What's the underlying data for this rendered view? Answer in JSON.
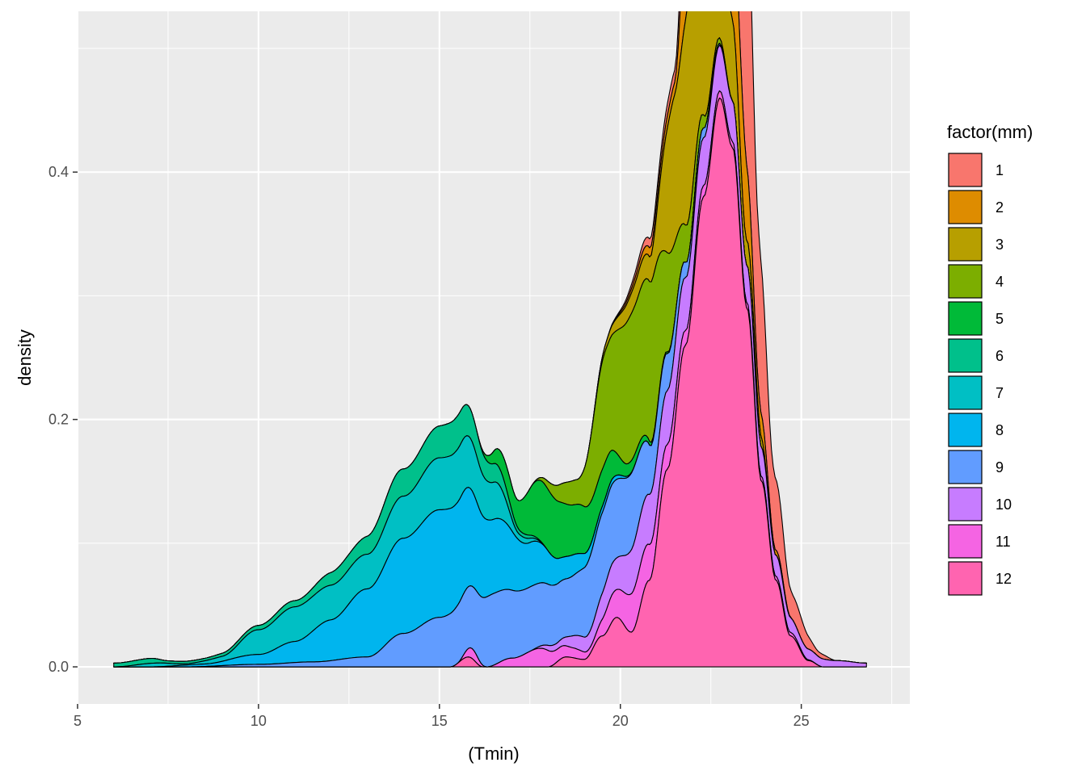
{
  "chart_data": {
    "type": "area",
    "subtype": "stacked-density",
    "xlabel": "(Tmin)",
    "ylabel": "density",
    "xlim": [
      5,
      28
    ],
    "ylim": [
      -0.03,
      0.53
    ],
    "x_ticks": [
      5,
      10,
      15,
      20,
      25
    ],
    "x_tick_labels": [
      "5",
      "10",
      "15",
      "20",
      "25"
    ],
    "y_ticks": [
      0.0,
      0.2,
      0.4
    ],
    "y_tick_labels": [
      "0.0",
      "0.2",
      "0.4"
    ],
    "grid": true,
    "legend": {
      "title": "factor(mm)",
      "position": "right"
    },
    "series": [
      {
        "name": "1",
        "color": "#F8766D",
        "points": [
          [
            19.5,
            0
          ],
          [
            21.5,
            0.01
          ],
          [
            22.3,
            0.19
          ],
          [
            22.8,
            0.42
          ],
          [
            23.2,
            0.36
          ],
          [
            23.5,
            0.22
          ],
          [
            23.8,
            0.13
          ],
          [
            24.2,
            0.06
          ],
          [
            24.8,
            0.02
          ],
          [
            25.5,
            0.004
          ],
          [
            26.0,
            0
          ]
        ]
      },
      {
        "name": "2",
        "color": "#DE8C00",
        "points": [
          [
            19.5,
            0
          ],
          [
            21.5,
            0.01
          ],
          [
            22.1,
            0.21
          ],
          [
            22.5,
            0.36
          ],
          [
            22.8,
            0.24
          ],
          [
            23.3,
            0.08
          ],
          [
            23.8,
            0.02
          ],
          [
            24.3,
            0.004
          ],
          [
            24.8,
            0
          ]
        ]
      },
      {
        "name": "3",
        "color": "#B79F00",
        "points": [
          [
            19.0,
            0
          ],
          [
            20.8,
            0.02
          ],
          [
            21.5,
            0.12
          ],
          [
            22.0,
            0.19
          ],
          [
            22.5,
            0.15
          ],
          [
            23.0,
            0.07
          ],
          [
            23.5,
            0.02
          ],
          [
            24.2,
            0
          ]
        ]
      },
      {
        "name": "4",
        "color": "#7CAE00",
        "points": [
          [
            17.5,
            0
          ],
          [
            18.8,
            0.02
          ],
          [
            19.6,
            0.09
          ],
          [
            20.4,
            0.12
          ],
          [
            20.9,
            0.13
          ],
          [
            21.3,
            0.08
          ],
          [
            21.8,
            0.03
          ],
          [
            22.5,
            0.006
          ],
          [
            23.2,
            0
          ]
        ]
      },
      {
        "name": "5",
        "color": "#00BA38",
        "points": [
          [
            16.0,
            0
          ],
          [
            17.0,
            0.02
          ],
          [
            17.9,
            0.05
          ],
          [
            18.8,
            0.04
          ],
          [
            19.5,
            0.03
          ],
          [
            20.2,
            0.01
          ],
          [
            21.0,
            0.002
          ],
          [
            21.8,
            0
          ]
        ]
      },
      {
        "name": "6",
        "color": "#00C08B",
        "points": [
          [
            6.0,
            0.003
          ],
          [
            7.0,
            0.004
          ],
          [
            7.5,
            0.002
          ],
          [
            8.5,
            0.002
          ],
          [
            9.5,
            0.003
          ],
          [
            11.0,
            0.005
          ],
          [
            12.5,
            0.012
          ],
          [
            14.0,
            0.022
          ],
          [
            15.5,
            0.027
          ],
          [
            16.5,
            0.015
          ],
          [
            17.3,
            0.003
          ],
          [
            18.0,
            0
          ]
        ]
      },
      {
        "name": "7",
        "color": "#00BFC4",
        "points": [
          [
            6.0,
            0
          ],
          [
            7.2,
            0.003
          ],
          [
            8.0,
            0.001
          ],
          [
            9.0,
            0.004
          ],
          [
            10.0,
            0.02
          ],
          [
            11.0,
            0.028
          ],
          [
            12.0,
            0.028
          ],
          [
            13.0,
            0.028
          ],
          [
            14.0,
            0.034
          ],
          [
            15.0,
            0.042
          ],
          [
            15.6,
            0.043
          ],
          [
            16.5,
            0.03
          ],
          [
            17.2,
            0.005
          ],
          [
            18.0,
            0
          ]
        ]
      },
      {
        "name": "8",
        "color": "#00B5EE",
        "points": [
          [
            7.0,
            0
          ],
          [
            8.5,
            0.002
          ],
          [
            10.0,
            0.008
          ],
          [
            11.0,
            0.017
          ],
          [
            12.0,
            0.033
          ],
          [
            13.0,
            0.055
          ],
          [
            14.0,
            0.077
          ],
          [
            15.0,
            0.087
          ],
          [
            15.6,
            0.083
          ],
          [
            16.5,
            0.06
          ],
          [
            17.5,
            0.036
          ],
          [
            18.5,
            0.018
          ],
          [
            19.5,
            0.005
          ],
          [
            20.5,
            0
          ]
        ]
      },
      {
        "name": "9",
        "color": "#619CFF",
        "points": [
          [
            8.0,
            0
          ],
          [
            10.0,
            0.002
          ],
          [
            11.5,
            0.004
          ],
          [
            13.0,
            0.008
          ],
          [
            14.0,
            0.027
          ],
          [
            15.0,
            0.04
          ],
          [
            15.8,
            0.05
          ],
          [
            16.5,
            0.058
          ],
          [
            17.5,
            0.052
          ],
          [
            18.5,
            0.047
          ],
          [
            19.5,
            0.065
          ],
          [
            20.3,
            0.062
          ],
          [
            21.0,
            0.035
          ],
          [
            22.0,
            0.01
          ],
          [
            23.0,
            0
          ]
        ]
      },
      {
        "name": "10",
        "color": "#C77CFF",
        "points": [
          [
            17.5,
            0
          ],
          [
            18.2,
            0.005
          ],
          [
            19.0,
            0.012
          ],
          [
            19.8,
            0.025
          ],
          [
            20.6,
            0.04
          ],
          [
            21.5,
            0.044
          ],
          [
            22.5,
            0.038
          ],
          [
            23.5,
            0.03
          ],
          [
            24.3,
            0.017
          ],
          [
            25.0,
            0.009
          ],
          [
            26.0,
            0.005
          ],
          [
            26.8,
            0.003
          ]
        ]
      },
      {
        "name": "11",
        "color": "#F564E3",
        "points": [
          [
            15.5,
            0
          ],
          [
            15.9,
            0.008
          ],
          [
            16.3,
            0
          ],
          [
            17.0,
            0.007
          ],
          [
            17.8,
            0.015
          ],
          [
            18.3,
            0.01
          ],
          [
            18.7,
            0.008
          ],
          [
            19.2,
            0.005
          ],
          [
            19.8,
            0.022
          ],
          [
            20.5,
            0.033
          ],
          [
            21.3,
            0.02
          ],
          [
            22.0,
            0.01
          ],
          [
            23.0,
            0.005
          ],
          [
            24.5,
            0.003
          ],
          [
            25.5,
            0
          ]
        ]
      },
      {
        "name": "12",
        "color": "#FF64B0",
        "points": [
          [
            15.3,
            0
          ],
          [
            15.8,
            0.008
          ],
          [
            16.2,
            0
          ],
          [
            18.0,
            0
          ],
          [
            18.5,
            0.008
          ],
          [
            19.0,
            0.006
          ],
          [
            19.5,
            0.025
          ],
          [
            19.9,
            0.04
          ],
          [
            20.3,
            0.028
          ],
          [
            20.8,
            0.07
          ],
          [
            21.3,
            0.16
          ],
          [
            21.8,
            0.26
          ],
          [
            22.3,
            0.38
          ],
          [
            22.75,
            0.46
          ],
          [
            23.1,
            0.42
          ],
          [
            23.5,
            0.29
          ],
          [
            23.9,
            0.15
          ],
          [
            24.3,
            0.07
          ],
          [
            24.7,
            0.025
          ],
          [
            25.2,
            0.005
          ],
          [
            25.6,
            0
          ]
        ]
      }
    ]
  }
}
